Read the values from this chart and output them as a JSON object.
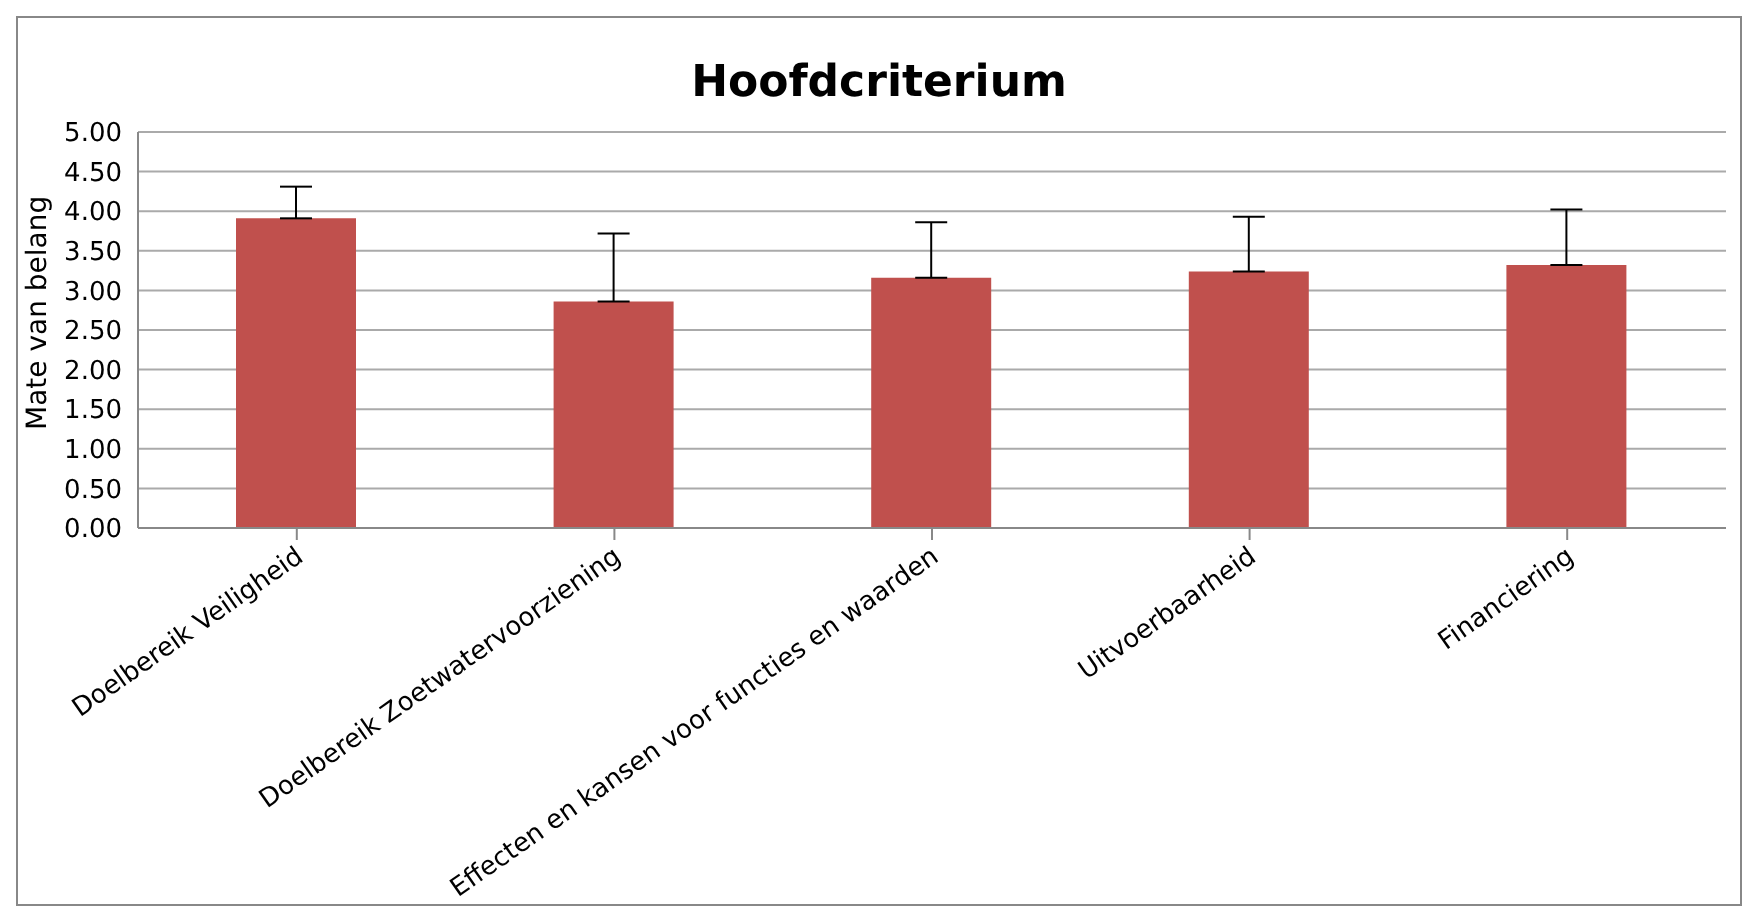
{
  "chart_data": {
    "type": "bar",
    "title": "Hoofdcriterium",
    "ylabel": "Mate van belang",
    "categories": [
      "Doelbereik Veiligheid",
      "Doelbereik Zoetwatervoorziening",
      "Effecten en kansen voor functies en waarden",
      "Uitvoerbaarheid",
      "Financiering"
    ],
    "values": [
      3.91,
      2.86,
      3.16,
      3.24,
      3.32
    ],
    "errors": [
      [
        3.91,
        4.31
      ],
      [
        2.86,
        3.72
      ],
      [
        3.16,
        3.86
      ],
      [
        3.24,
        3.93
      ],
      [
        3.32,
        4.02
      ]
    ],
    "color": "#c0504d",
    "ylim": [
      0,
      5
    ],
    "yticks": [
      {
        "value": 0,
        "label": "0.00"
      },
      {
        "value": 0.5,
        "label": "0.50"
      },
      {
        "value": 1,
        "label": "1.00"
      },
      {
        "value": 1.5,
        "label": "1.50"
      },
      {
        "value": 2,
        "label": "2.00"
      },
      {
        "value": 2.5,
        "label": "2.50"
      },
      {
        "value": 3,
        "label": "3.00"
      },
      {
        "value": 3.5,
        "label": "3.50"
      },
      {
        "value": 4,
        "label": "4.00"
      },
      {
        "value": 4.5,
        "label": "4.50"
      },
      {
        "value": 5,
        "label": "5.00"
      }
    ],
    "grid": "y",
    "legend": false
  }
}
